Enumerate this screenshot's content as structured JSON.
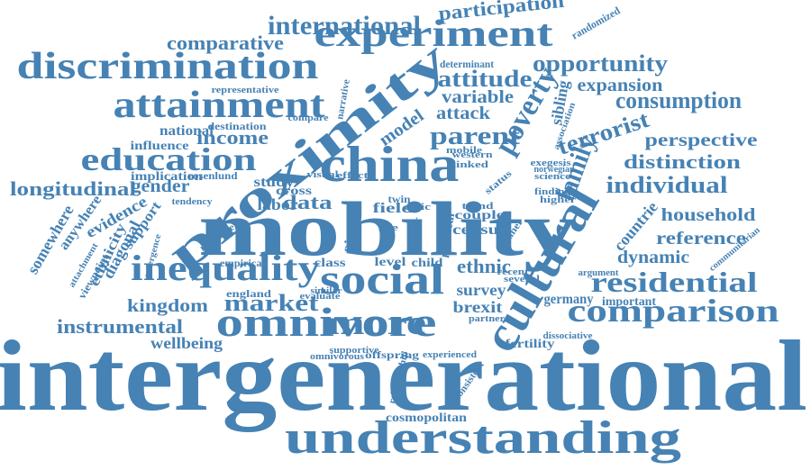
{
  "cloud": {
    "color": "#4682b4",
    "words": [
      "intergenerational",
      "mobility",
      "understanding",
      "proximity",
      "cultural",
      "china",
      "social",
      "omnivore",
      "inequality",
      "attainment",
      "discrimination",
      "experiment",
      "education",
      "comparison",
      "residential",
      "more",
      "poverty",
      "international",
      "participation",
      "comparative",
      "opportunity",
      "attitude",
      "parent",
      "terrorist",
      "consumption",
      "expansion",
      "family",
      "perspective",
      "distinction",
      "individual",
      "longitudinal",
      "gender",
      "income",
      "market",
      "kingdom",
      "instrumental",
      "wellbeing",
      "household",
      "reference",
      "dynamic",
      "countrie",
      "ethnic",
      "survey",
      "brexit",
      "census",
      "couple",
      "data",
      "model",
      "labor",
      "study",
      "field",
      "evidence",
      "diagonal",
      "somewhere",
      "anywhere",
      "ethnicity",
      "support",
      "national",
      "influence",
      "implication",
      "variable",
      "attack",
      "sibling",
      "germany",
      "important",
      "fertility",
      "cosmopolitan",
      "offspring",
      "experienced",
      "dissociative",
      "consistent",
      "class",
      "level",
      "child",
      "size",
      "cross",
      "england",
      "empirical",
      "viewpoint",
      "attachment",
      "communitarian",
      "randomized",
      "determinant",
      "representative",
      "narrative",
      "destination",
      "rosenlund",
      "western",
      "linked",
      "trend",
      "finding",
      "higher",
      "exegesis",
      "compare",
      "rejoinder",
      "emergence",
      "panel",
      "political",
      "visual",
      "effect",
      "omnivorous",
      "supportive",
      "similar",
      "evaluate",
      "norwegian",
      "science",
      "paper",
      "recent",
      "several",
      "mobile",
      "partner",
      "twin",
      "civic",
      "life",
      "status",
      "relationship",
      "tendency",
      "argument",
      "association"
    ]
  }
}
